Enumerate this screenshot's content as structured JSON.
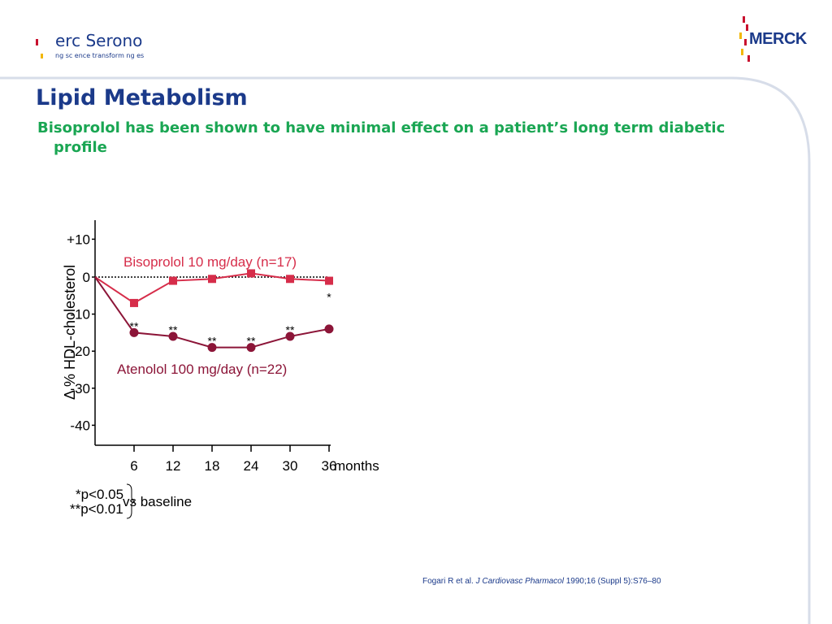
{
  "header": {
    "left_logo": {
      "name": "erc Serono",
      "tagline": "ng sc ence transform ng es"
    },
    "right_logo": {
      "name": "MERCK"
    }
  },
  "title": "Lipid Metabolism",
  "subtitle": "Bisoprolol has been shown to have minimal effect on a patient’s long term diabetic profile",
  "chart_data": {
    "type": "line",
    "ylabel": "Δ % HDL-cholesterol",
    "xlabel": "months",
    "x": [
      0,
      6,
      12,
      18,
      24,
      30,
      36
    ],
    "xticks": [
      "6",
      "12",
      "18",
      "24",
      "30",
      "36"
    ],
    "yticks": [
      "+10",
      "0",
      "-10",
      "-20",
      "-30",
      "-40"
    ],
    "ylim": [
      -40,
      10
    ],
    "xlim": [
      0,
      36
    ],
    "reference_line": {
      "y": 0,
      "style": "dotted"
    },
    "series": [
      {
        "name": "Bisoprolol 10 mg/day (n=17)",
        "color": "#d62d4a",
        "marker": "square",
        "values": [
          0,
          -7,
          -1,
          -0.5,
          1,
          -0.5,
          -1
        ],
        "significance": [
          "",
          "",
          "",
          "",
          "",
          "",
          "*"
        ]
      },
      {
        "name": "Atenolol 100 mg/day (n=22)",
        "color": "#8c1538",
        "marker": "circle",
        "values": [
          0,
          -15,
          -16,
          -19,
          -19,
          -16,
          -14
        ],
        "significance": [
          "",
          "**",
          "**",
          "**",
          "**",
          "**",
          ""
        ]
      }
    ],
    "footnotes": {
      "items": [
        "*p<0.05",
        "**p<0.01"
      ],
      "suffix": "vs baseline"
    }
  },
  "source": {
    "authors": "Fogari R et al.",
    "journal": "J Cardiovasc Pharmacol",
    "details": "1990;16 (Suppl 5):S76–80"
  },
  "colors": {
    "brand_blue": "#1b3a8a",
    "brand_green": "#1aa653",
    "brand_red": "#c8102e"
  }
}
